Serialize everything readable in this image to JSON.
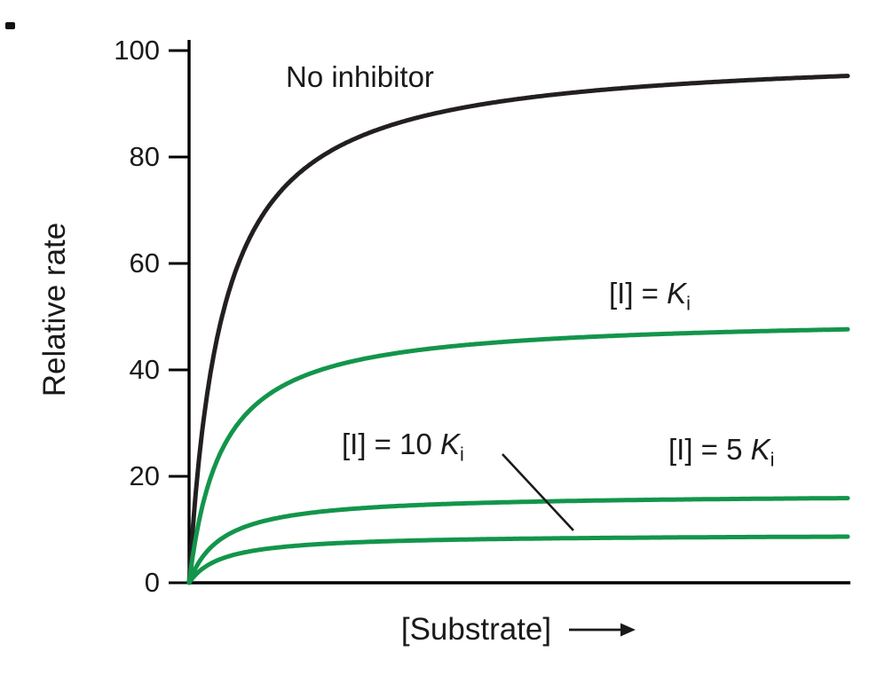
{
  "chart_data": {
    "type": "line",
    "title": "",
    "xlabel": "[Substrate]",
    "ylabel": "Relative rate",
    "ylim": [
      0,
      100
    ],
    "yticks": [
      0,
      20,
      40,
      60,
      80,
      100
    ],
    "grid": false,
    "legend": "inline-annotations",
    "x_model": {
      "description": "substrate concentration in units of Km, unlabeled axis",
      "range": [
        0,
        20
      ]
    },
    "model": "v = Vmax_apparent * S / (Km + S)",
    "series": [
      {
        "label": "No inhibitor",
        "vmax_apparent": 100,
        "km_relative": 1,
        "value_at_right_edge": 95,
        "color": "#231f20"
      },
      {
        "label": "[I] = Ki",
        "vmax_apparent": 50,
        "km_relative": 1,
        "value_at_right_edge": 48,
        "color": "#13954b"
      },
      {
        "label": "[I] = 5 Ki",
        "vmax_apparent": 16.7,
        "km_relative": 1,
        "value_at_right_edge": 16,
        "color": "#13954b"
      },
      {
        "label": "[I] = 10 Ki",
        "vmax_apparent": 9.1,
        "km_relative": 1,
        "value_at_right_edge": 9,
        "color": "#13954b"
      }
    ]
  },
  "labels": {
    "y_axis": "Relative rate",
    "x_axis": "[Substrate]",
    "arrow_icon": "right-arrow"
  },
  "annotations": {
    "no_inhibitor": {
      "text": "No inhibitor"
    },
    "ki": {
      "prefix": "[I] = ",
      "symbol": "K",
      "subscript": "i"
    },
    "ki10": {
      "prefix": "[I] = 10 ",
      "symbol": "K",
      "subscript": "i"
    },
    "ki5": {
      "prefix": "[I] = 5 ",
      "symbol": "K",
      "subscript": "i"
    }
  },
  "colors": {
    "axis": "#000000",
    "curve_black": "#231f20",
    "curve_green": "#13954b",
    "background": "#ffffff"
  }
}
